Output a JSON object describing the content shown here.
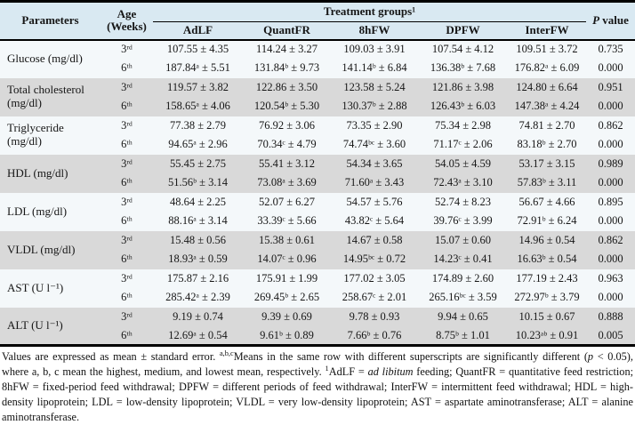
{
  "table": {
    "header": {
      "parameters": "Parameters",
      "age": "Age (Weeks)",
      "treatment_groups": "Treatment groups¹",
      "group_cols": [
        "AdLF",
        "QuantFR",
        "8hFW",
        "DPFW",
        "InterFW"
      ],
      "p_italic": "P",
      "p_rest": "value"
    },
    "rows": [
      {
        "parameter": "Glucose (mg/dl)",
        "weeks": [
          {
            "age": "3ʳᵈ",
            "values": [
              "107.55 ± 4.35",
              "114.24 ± 3.27",
              "109.03 ± 3.91",
              "107.54 ± 4.12",
              "109.51 ± 3.72"
            ],
            "p": "0.735"
          },
          {
            "age": "6ᵗʰ",
            "values": [
              "187.84ᵃ ± 5.51",
              "131.84ᵇ ± 9.73",
              "141.14ᵇ ± 6.84",
              "136.38ᵇ ± 7.68",
              "176.82ᵃ ± 6.09"
            ],
            "p": "0.000"
          }
        ]
      },
      {
        "parameter": "Total cholesterol (mg/dl)",
        "weeks": [
          {
            "age": "3ʳᵈ",
            "values": [
              "119.57 ± 3.82",
              "122.86 ± 3.50",
              "123.58 ± 5.24",
              "121.86 ± 3.98",
              "124.80 ± 6.64"
            ],
            "p": "0.951"
          },
          {
            "age": "6ᵗʰ",
            "values": [
              "158.65ᵃ ± 4.06",
              "120.54ᵇ ± 5.30",
              "130.37ᵇ ± 2.88",
              "126.43ᵇ ± 6.03",
              "147.38ᵃ ± 4.24"
            ],
            "p": "0.000"
          }
        ]
      },
      {
        "parameter": "Triglyceride (mg/dl)",
        "weeks": [
          {
            "age": "3ʳᵈ",
            "values": [
              "77.38 ± 2.79",
              "76.92 ± 3.06",
              "73.35 ± 2.90",
              "75.34 ± 2.98",
              "74.81 ± 2.70"
            ],
            "p": "0.862"
          },
          {
            "age": "6ᵗʰ",
            "values": [
              "94.65ᵃ ± 2.96",
              "70.34ᶜ ± 4.79",
              "74.74ᵇᶜ ± 3.60",
              "71.17ᶜ ± 2.06",
              "83.18ᵇ ± 2.70"
            ],
            "p": "0.000"
          }
        ]
      },
      {
        "parameter": "HDL (mg/dl)",
        "weeks": [
          {
            "age": "3ʳᵈ",
            "values": [
              "55.45 ± 2.75",
              "55.41 ± 3.12",
              "54.34 ± 3.65",
              "54.05 ± 4.59",
              "53.17 ± 3.15"
            ],
            "p": "0.989"
          },
          {
            "age": "6ᵗʰ",
            "values": [
              "51.56ᵇ ± 3.14",
              "73.08ᵃ ± 3.69",
              "71.60ᵃ ± 3.43",
              "72.43ᵃ ± 3.10",
              "57.83ᵇ ± 3.11"
            ],
            "p": "0.000"
          }
        ]
      },
      {
        "parameter": "LDL (mg/dl)",
        "weeks": [
          {
            "age": "3ʳᵈ",
            "values": [
              "48.64 ± 2.25",
              "52.07 ± 6.27",
              "54.57 ± 5.76",
              "52.74 ± 8.23",
              "56.67 ± 4.66"
            ],
            "p": "0.895"
          },
          {
            "age": "6ᵗʰ",
            "values": [
              "88.16ᵃ ± 3.14",
              "33.39ᶜ ± 5.66",
              "43.82ᶜ ± 5.64",
              "39.76ᶜ ± 3.99",
              "72.91ᵇ ± 6.24"
            ],
            "p": "0.000"
          }
        ]
      },
      {
        "parameter": "VLDL (mg/dl)",
        "weeks": [
          {
            "age": "3ʳᵈ",
            "values": [
              "15.48 ± 0.56",
              "15.38 ± 0.61",
              "14.67 ± 0.58",
              "15.07 ± 0.60",
              "14.96 ± 0.54"
            ],
            "p": "0.862"
          },
          {
            "age": "6ᵗʰ",
            "values": [
              "18.93ᵃ ± 0.59",
              "14.07ᶜ ± 0.96",
              "14.95ᵇᶜ ± 0.72",
              "14.23ᶜ ± 0.41",
              "16.63ᵇ ± 0.54"
            ],
            "p": "0.000"
          }
        ]
      },
      {
        "parameter": "AST (U l⁻¹)",
        "weeks": [
          {
            "age": "3ʳᵈ",
            "values": [
              "175.87 ± 2.16",
              "175.91 ± 1.99",
              "177.02 ± 3.05",
              "174.89 ± 2.60",
              "177.19 ± 2.43"
            ],
            "p": "0.963"
          },
          {
            "age": "6ᵗʰ",
            "values": [
              "285.42ᵃ ± 2.39",
              "269.45ᵇ ± 2.65",
              "258.67ᶜ ± 2.01",
              "265.16ᵇᶜ ± 3.59",
              "272.97ᵇ ± 3.79"
            ],
            "p": "0.000"
          }
        ]
      },
      {
        "parameter": "ALT (U l⁻¹)",
        "weeks": [
          {
            "age": "3ʳᵈ",
            "values": [
              "9.19 ± 0.74",
              "9.39 ± 0.69",
              "9.78 ± 0.93",
              "9.94 ± 0.65",
              "10.15 ± 0.67"
            ],
            "p": "0.888"
          },
          {
            "age": "6ᵗʰ",
            "values": [
              "12.69ᵃ ± 0.54",
              "9.61ᵇ ± 0.89",
              "7.66ᵇ ± 0.76",
              "8.75ᵇ ± 1.01",
              "10.23ᵃᵇ ± 0.91"
            ],
            "p": "0.005"
          }
        ]
      }
    ]
  },
  "footnote": {
    "part1": "Values are expressed as mean ± standard error. ",
    "sup_abc": "a,b,c",
    "part2": "Means in the same row with different superscripts are significantly different (",
    "p_italic": "p",
    "part3": " < 0.05), where a, b, c mean the highest, medium, and lowest mean, respectively. ",
    "sup_1": "1",
    "part4": "AdLF = ",
    "ad_libitum_italic": "ad libitum",
    "part5": " feeding; QuantFR = quantitative feed restriction; 8hFW = fixed-period feed withdrawal; DPFW = different periods of feed withdrawal; InterFW = intermittent feed withdrawal; HDL = high-density lipoprotein; LDL = low-density lipoprotein; VLDL = very low-density lipoprotein; AST = aspartate aminotransferase; ALT = alanine aminotransferase."
  },
  "colors": {
    "header_bg": "#d9e9f2",
    "stripe_light": "#f4f8fa",
    "stripe_gray": "#d9d9d9",
    "rule": "#000000"
  }
}
